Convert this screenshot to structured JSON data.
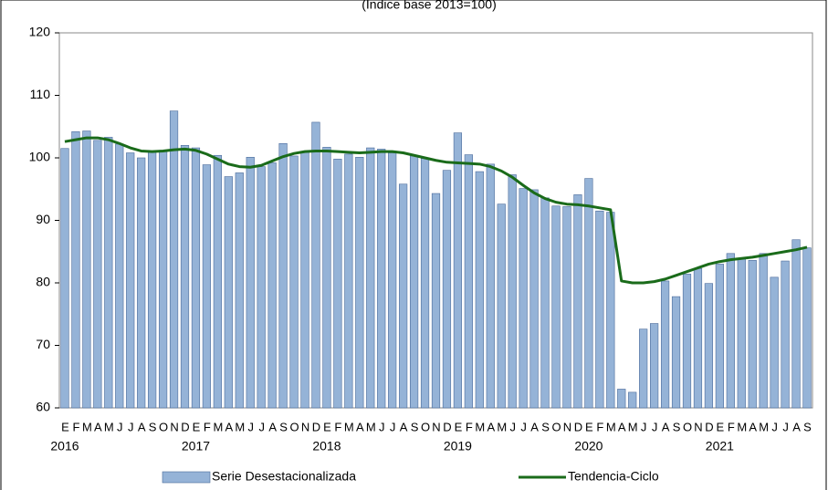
{
  "chart_data": {
    "type": "bar_line",
    "subtitle": "(Índice base 2013=100)",
    "categories": [
      "E",
      "F",
      "M",
      "A",
      "M",
      "J",
      "J",
      "A",
      "S",
      "O",
      "N",
      "D",
      "E",
      "F",
      "M",
      "A",
      "M",
      "J",
      "J",
      "A",
      "S",
      "O",
      "N",
      "D",
      "E",
      "F",
      "M",
      "A",
      "M",
      "J",
      "J",
      "A",
      "S",
      "O",
      "N",
      "D",
      "E",
      "F",
      "M",
      "A",
      "M",
      "J",
      "J",
      "A",
      "S",
      "O",
      "N",
      "D",
      "E",
      "F",
      "M",
      "A",
      "M",
      "J",
      "J",
      "A",
      "S",
      "O",
      "N",
      "D",
      "E",
      "F",
      "M",
      "A",
      "M",
      "J",
      "J",
      "A",
      "S"
    ],
    "years": [
      "2016",
      "2017",
      "2018",
      "2019",
      "2020",
      "2021"
    ],
    "series": [
      {
        "name": "Serie Desestacionalizada",
        "kind": "bar",
        "color": "#95b3d7",
        "values": [
          101.5,
          104.2,
          104.3,
          102.8,
          103.3,
          102.2,
          100.8,
          100.0,
          101.0,
          101.2,
          107.5,
          102.0,
          101.6,
          98.9,
          100.4,
          97.0,
          97.6,
          100.1,
          98.6,
          99.2,
          102.3,
          100.3,
          101.0,
          105.7,
          101.7,
          99.8,
          100.6,
          100.1,
          101.6,
          101.4,
          100.8,
          95.8,
          100.3,
          99.9,
          94.3,
          98.0,
          104.0,
          100.5,
          97.8,
          99.0,
          92.6,
          97.3,
          95.1,
          94.9,
          93.6,
          92.3,
          92.2,
          94.1,
          96.7,
          91.5,
          91.3,
          63.0,
          62.5,
          72.6,
          73.5,
          80.3,
          77.8,
          81.4,
          82.3,
          79.9,
          83.0,
          84.7,
          83.8,
          83.6,
          84.7,
          80.9,
          83.5,
          86.9,
          85.6
        ]
      },
      {
        "name": "Tendencia-Ciclo",
        "kind": "line",
        "color": "#1a6b1a",
        "values": [
          102.6,
          102.9,
          103.2,
          103.2,
          102.9,
          102.3,
          101.6,
          101.1,
          101.0,
          101.1,
          101.3,
          101.4,
          101.2,
          100.6,
          99.8,
          99.0,
          98.6,
          98.5,
          98.8,
          99.5,
          100.2,
          100.7,
          101.0,
          101.1,
          101.1,
          101.0,
          100.9,
          100.8,
          100.9,
          101.0,
          101.0,
          100.8,
          100.4,
          100.0,
          99.6,
          99.3,
          99.2,
          99.1,
          99.0,
          98.6,
          97.9,
          96.9,
          95.6,
          94.4,
          93.5,
          92.9,
          92.6,
          92.5,
          92.3,
          92.0,
          91.7,
          80.3,
          80.0,
          80.0,
          80.2,
          80.6,
          81.2,
          81.8,
          82.4,
          83.0,
          83.4,
          83.7,
          83.9,
          84.1,
          84.4,
          84.7,
          85.0,
          85.3,
          85.7
        ]
      }
    ],
    "ylim": [
      60,
      120
    ],
    "yticks": [
      60,
      70,
      80,
      90,
      100,
      110,
      120
    ]
  }
}
